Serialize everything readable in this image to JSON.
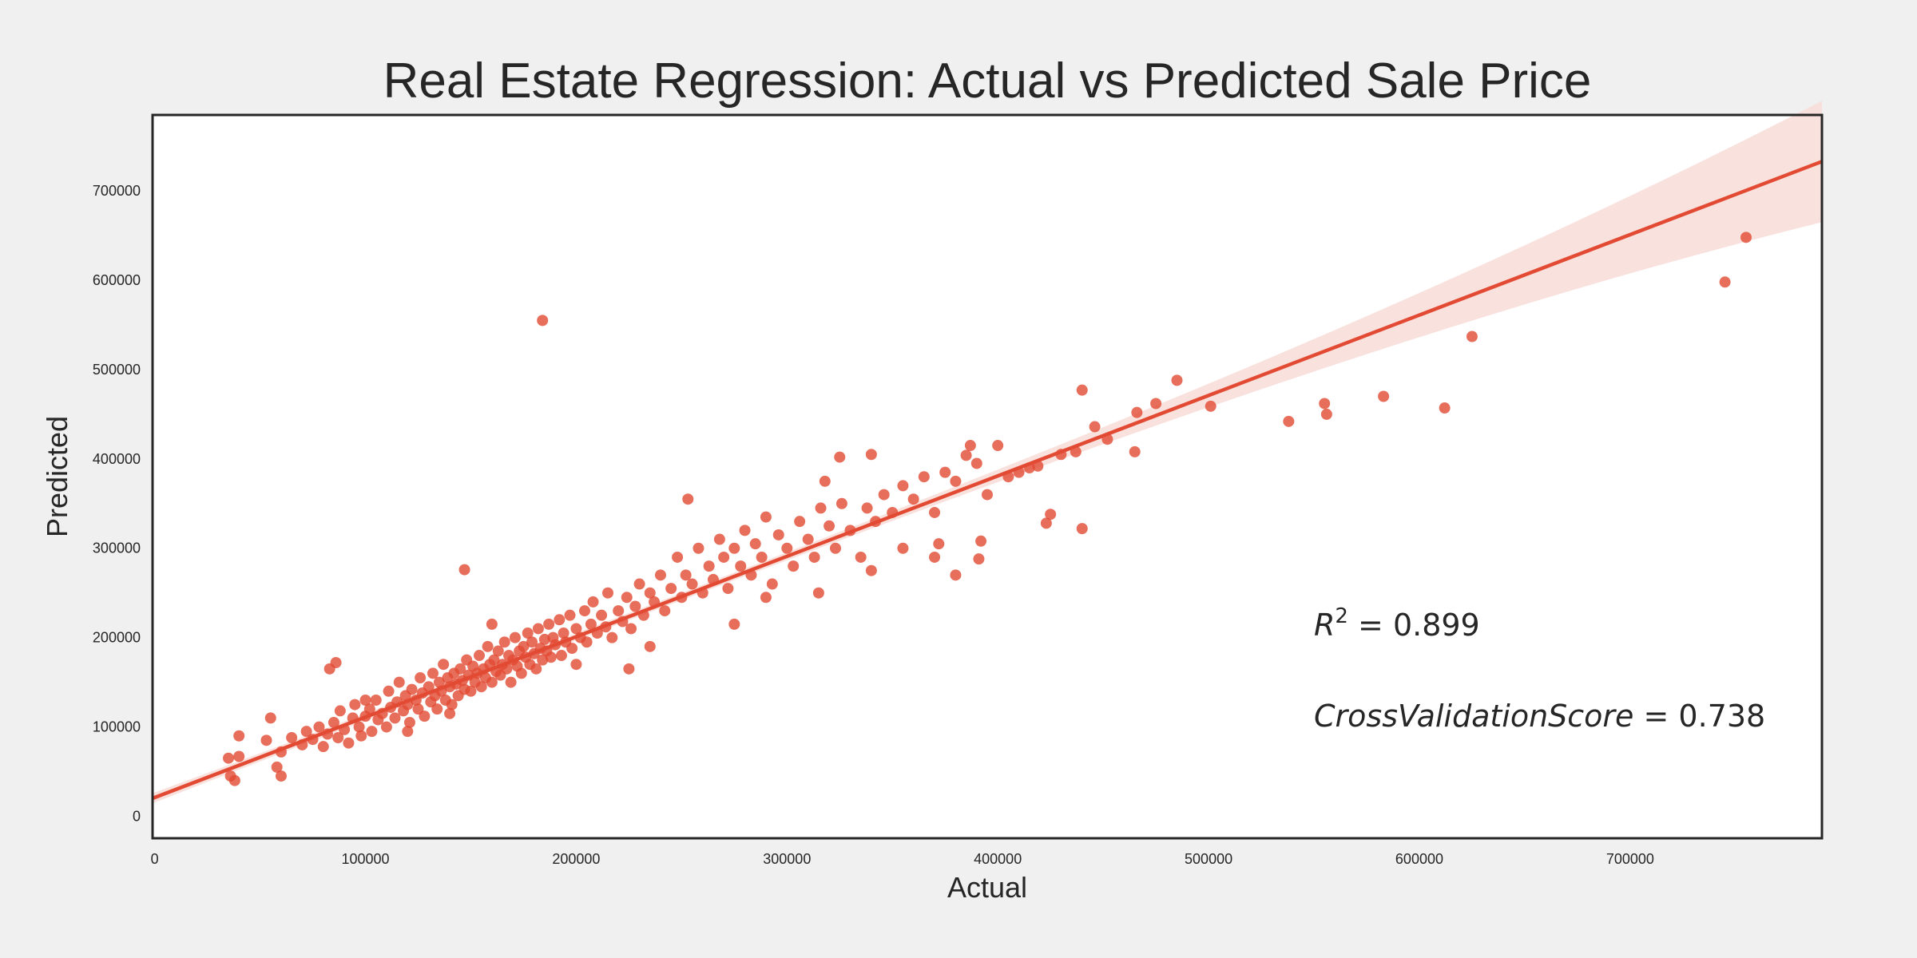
{
  "chart_data": {
    "type": "scatter",
    "title": "Real Estate Regression: Actual vs Predicted Sale Price",
    "xlabel": "Actual",
    "ylabel": "Predicted",
    "xlim": [
      -1000,
      791000
    ],
    "ylim": [
      -24600,
      785000
    ],
    "xticks": [
      0,
      100000,
      200000,
      300000,
      400000,
      500000,
      600000,
      700000
    ],
    "xtick_labels": [
      "0",
      "100000",
      "200000",
      "300000",
      "400000",
      "500000",
      "600000",
      "700000"
    ],
    "yticks": [
      0,
      100000,
      200000,
      300000,
      400000,
      500000,
      600000,
      700000
    ],
    "ytick_labels": [
      "0",
      "100000",
      "200000",
      "300000",
      "400000",
      "500000",
      "600000",
      "700000"
    ],
    "grid": false,
    "colors": {
      "points": "#E24A33",
      "line": "#E24A33",
      "band": "#F8DCD7",
      "background": "#f0f0f0",
      "plot_bg": "#ffffff"
    },
    "regression_line": {
      "slope": 0.9,
      "intercept": 21000,
      "ci_band": true
    },
    "annotations": [
      {
        "label": "R^2 = 0.899",
        "base": "R",
        "sup": "2",
        "value": " = 0.899"
      },
      {
        "label": "CrossValidationScore = 0.738",
        "base": "CrossValidationScore",
        "value": " = 0.738"
      }
    ],
    "points": [
      [
        184000,
        555000
      ],
      [
        147000,
        276000
      ],
      [
        745000,
        598000
      ],
      [
        755000,
        648000
      ],
      [
        625000,
        537000
      ],
      [
        612000,
        457000
      ],
      [
        583000,
        470000
      ],
      [
        556000,
        450000
      ],
      [
        555000,
        462000
      ],
      [
        538000,
        442000
      ],
      [
        501000,
        459000
      ],
      [
        485000,
        488000
      ],
      [
        475000,
        462000
      ],
      [
        466000,
        452000
      ],
      [
        465000,
        408000
      ],
      [
        452000,
        422000
      ],
      [
        446000,
        436000
      ],
      [
        440000,
        477000
      ],
      [
        440000,
        322000
      ],
      [
        437000,
        408000
      ],
      [
        425000,
        338000
      ],
      [
        423000,
        328000
      ],
      [
        419000,
        392000
      ],
      [
        410000,
        385000
      ],
      [
        400000,
        415000
      ],
      [
        387000,
        415000
      ],
      [
        380000,
        270000
      ],
      [
        391000,
        288000
      ],
      [
        392000,
        308000
      ],
      [
        385000,
        404000
      ],
      [
        370000,
        290000
      ],
      [
        372000,
        305000
      ],
      [
        325000,
        402000
      ],
      [
        340000,
        405000
      ],
      [
        318000,
        375000
      ],
      [
        253000,
        355000
      ],
      [
        86000,
        172000
      ],
      [
        83000,
        165000
      ],
      [
        40000,
        90000
      ],
      [
        38000,
        40000
      ],
      [
        55000,
        110000
      ],
      [
        60000,
        45000
      ],
      [
        35000,
        65000
      ],
      [
        36000,
        45000
      ],
      [
        40000,
        67000
      ],
      [
        53000,
        85000
      ],
      [
        58000,
        55000
      ],
      [
        60000,
        72000
      ],
      [
        65000,
        88000
      ],
      [
        70000,
        80000
      ],
      [
        72000,
        95000
      ],
      [
        75000,
        86000
      ],
      [
        78000,
        100000
      ],
      [
        80000,
        78000
      ],
      [
        82000,
        92000
      ],
      [
        85000,
        105000
      ],
      [
        87000,
        88000
      ],
      [
        88000,
        118000
      ],
      [
        90000,
        97000
      ],
      [
        92000,
        82000
      ],
      [
        94000,
        110000
      ],
      [
        95000,
        125000
      ],
      [
        97000,
        100000
      ],
      [
        98000,
        90000
      ],
      [
        100000,
        112000
      ],
      [
        102000,
        120000
      ],
      [
        103000,
        95000
      ],
      [
        105000,
        130000
      ],
      [
        106000,
        108000
      ],
      [
        108000,
        115000
      ],
      [
        110000,
        100000
      ],
      [
        111000,
        140000
      ],
      [
        112000,
        122000
      ],
      [
        114000,
        110000
      ],
      [
        115000,
        128000
      ],
      [
        116000,
        150000
      ],
      [
        118000,
        118000
      ],
      [
        119000,
        135000
      ],
      [
        120000,
        125000
      ],
      [
        121000,
        105000
      ],
      [
        122000,
        142000
      ],
      [
        124000,
        130000
      ],
      [
        125000,
        120000
      ],
      [
        126000,
        155000
      ],
      [
        127000,
        138000
      ],
      [
        128000,
        112000
      ],
      [
        130000,
        145000
      ],
      [
        131000,
        128000
      ],
      [
        132000,
        160000
      ],
      [
        133000,
        135000
      ],
      [
        134000,
        120000
      ],
      [
        135000,
        150000
      ],
      [
        136000,
        140000
      ],
      [
        137000,
        170000
      ],
      [
        138000,
        130000
      ],
      [
        139000,
        155000
      ],
      [
        140000,
        145000
      ],
      [
        141000,
        125000
      ],
      [
        142000,
        160000
      ],
      [
        143000,
        148000
      ],
      [
        144000,
        135000
      ],
      [
        145000,
        165000
      ],
      [
        146000,
        152000
      ],
      [
        147000,
        142000
      ],
      [
        148000,
        175000
      ],
      [
        149000,
        158000
      ],
      [
        150000,
        140000
      ],
      [
        151000,
        168000
      ],
      [
        152000,
        150000
      ],
      [
        153000,
        160000
      ],
      [
        154000,
        180000
      ],
      [
        155000,
        145000
      ],
      [
        156000,
        165000
      ],
      [
        157000,
        155000
      ],
      [
        158000,
        190000
      ],
      [
        159000,
        170000
      ],
      [
        160000,
        150000
      ],
      [
        161000,
        175000
      ],
      [
        162000,
        162000
      ],
      [
        163000,
        185000
      ],
      [
        164000,
        158000
      ],
      [
        165000,
        170000
      ],
      [
        166000,
        195000
      ],
      [
        167000,
        165000
      ],
      [
        168000,
        180000
      ],
      [
        169000,
        150000
      ],
      [
        170000,
        175000
      ],
      [
        171000,
        200000
      ],
      [
        172000,
        168000
      ],
      [
        173000,
        185000
      ],
      [
        174000,
        160000
      ],
      [
        175000,
        190000
      ],
      [
        176000,
        178000
      ],
      [
        177000,
        205000
      ],
      [
        178000,
        170000
      ],
      [
        179000,
        195000
      ],
      [
        180000,
        182000
      ],
      [
        181000,
        165000
      ],
      [
        182000,
        210000
      ],
      [
        183000,
        188000
      ],
      [
        184000,
        175000
      ],
      [
        185000,
        198000
      ],
      [
        186000,
        185000
      ],
      [
        187000,
        215000
      ],
      [
        188000,
        178000
      ],
      [
        189000,
        200000
      ],
      [
        190000,
        192000
      ],
      [
        192000,
        220000
      ],
      [
        193000,
        180000
      ],
      [
        194000,
        205000
      ],
      [
        195000,
        195000
      ],
      [
        197000,
        225000
      ],
      [
        198000,
        188000
      ],
      [
        200000,
        210000
      ],
      [
        202000,
        200000
      ],
      [
        204000,
        230000
      ],
      [
        205000,
        195000
      ],
      [
        207000,
        215000
      ],
      [
        208000,
        240000
      ],
      [
        210000,
        205000
      ],
      [
        212000,
        225000
      ],
      [
        214000,
        212000
      ],
      [
        215000,
        250000
      ],
      [
        217000,
        200000
      ],
      [
        220000,
        230000
      ],
      [
        222000,
        218000
      ],
      [
        224000,
        245000
      ],
      [
        226000,
        210000
      ],
      [
        228000,
        235000
      ],
      [
        230000,
        260000
      ],
      [
        232000,
        225000
      ],
      [
        235000,
        250000
      ],
      [
        237000,
        240000
      ],
      [
        240000,
        270000
      ],
      [
        242000,
        230000
      ],
      [
        245000,
        255000
      ],
      [
        248000,
        290000
      ],
      [
        250000,
        245000
      ],
      [
        252000,
        270000
      ],
      [
        255000,
        260000
      ],
      [
        258000,
        300000
      ],
      [
        260000,
        250000
      ],
      [
        263000,
        280000
      ],
      [
        265000,
        265000
      ],
      [
        268000,
        310000
      ],
      [
        270000,
        290000
      ],
      [
        272000,
        255000
      ],
      [
        275000,
        300000
      ],
      [
        278000,
        280000
      ],
      [
        280000,
        320000
      ],
      [
        283000,
        270000
      ],
      [
        285000,
        305000
      ],
      [
        288000,
        290000
      ],
      [
        290000,
        335000
      ],
      [
        293000,
        260000
      ],
      [
        296000,
        315000
      ],
      [
        300000,
        300000
      ],
      [
        303000,
        280000
      ],
      [
        306000,
        330000
      ],
      [
        310000,
        310000
      ],
      [
        313000,
        290000
      ],
      [
        316000,
        345000
      ],
      [
        320000,
        325000
      ],
      [
        323000,
        300000
      ],
      [
        326000,
        350000
      ],
      [
        330000,
        320000
      ],
      [
        335000,
        290000
      ],
      [
        338000,
        345000
      ],
      [
        342000,
        330000
      ],
      [
        346000,
        360000
      ],
      [
        350000,
        340000
      ],
      [
        355000,
        370000
      ],
      [
        360000,
        355000
      ],
      [
        365000,
        380000
      ],
      [
        370000,
        340000
      ],
      [
        375000,
        385000
      ],
      [
        380000,
        375000
      ],
      [
        390000,
        395000
      ],
      [
        395000,
        360000
      ],
      [
        405000,
        380000
      ],
      [
        415000,
        390000
      ],
      [
        430000,
        405000
      ],
      [
        100000,
        130000
      ],
      [
        120000,
        95000
      ],
      [
        140000,
        115000
      ],
      [
        160000,
        215000
      ],
      [
        200000,
        170000
      ],
      [
        225000,
        165000
      ],
      [
        235000,
        190000
      ],
      [
        275000,
        215000
      ],
      [
        290000,
        245000
      ],
      [
        315000,
        250000
      ],
      [
        340000,
        275000
      ],
      [
        355000,
        300000
      ]
    ]
  }
}
